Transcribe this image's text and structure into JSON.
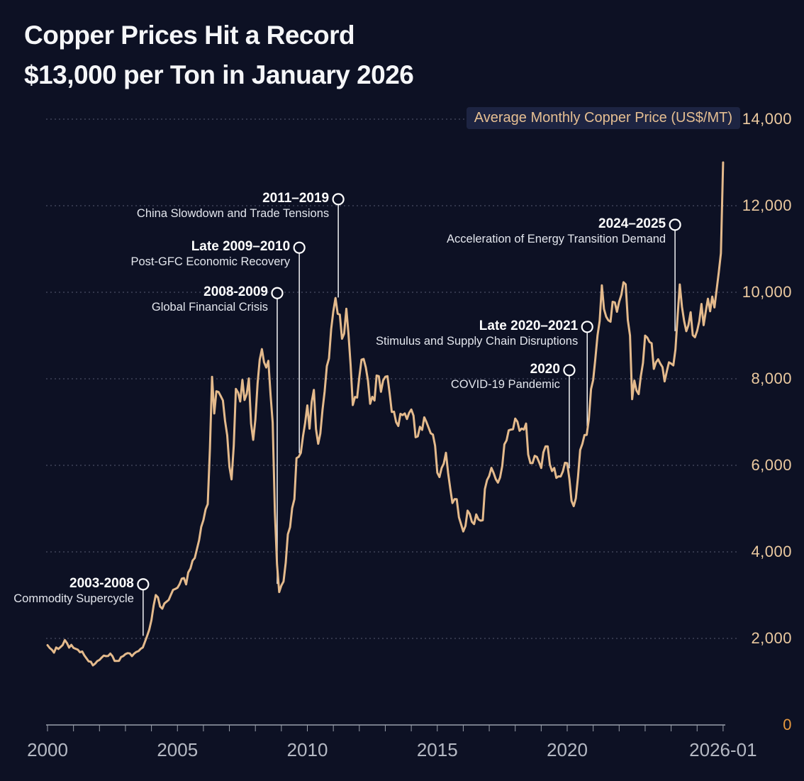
{
  "title": {
    "line1": "Copper Prices Hit a Record",
    "line2": "$13,000 per Ton in January 2026"
  },
  "legend": {
    "label": "Average Monthly Copper Price (US$/MT)"
  },
  "colors": {
    "background": "#0d1124",
    "line": "#e4ba8c",
    "grid": "#565c72",
    "axis_line": "#9aa0ab",
    "y_label": "#eccaa0",
    "zero_label": "#e6993f",
    "x_label": "#b5b9c3",
    "annotation_line": "#f2f3f5",
    "legend_bg": "#1d2442",
    "legend_text": "#e6bf92",
    "title_text": "#f5f6f8"
  },
  "chart_data": {
    "type": "line",
    "title": "Copper Prices Hit a Record $13,000 per Ton in January 2026",
    "series_name": "Average Monthly Copper Price (US$/MT)",
    "grid": "horizontal dashed",
    "legend_position": "top-right",
    "xlim": [
      2000,
      2026.08
    ],
    "ylim": [
      0,
      14000
    ],
    "x_start_year": 2000,
    "x_interval_months": 1,
    "y_ticks": [
      {
        "value": 0,
        "label": "0"
      },
      {
        "value": 2000,
        "label": "2,000"
      },
      {
        "value": 4000,
        "label": "4,000"
      },
      {
        "value": 6000,
        "label": "6,000"
      },
      {
        "value": 8000,
        "label": "8,000"
      },
      {
        "value": 10000,
        "label": "10,000"
      },
      {
        "value": 12000,
        "label": "12,000"
      },
      {
        "value": 14000,
        "label": "14,000"
      }
    ],
    "x_ticks": [
      {
        "value": 2000,
        "label": "2000"
      },
      {
        "value": 2005,
        "label": "2005"
      },
      {
        "value": 2010,
        "label": "2010"
      },
      {
        "value": 2015,
        "label": "2015"
      },
      {
        "value": 2020,
        "label": "2020"
      },
      {
        "value": 2026,
        "label": "2026-01"
      }
    ],
    "values": [
      1844,
      1779,
      1739,
      1670,
      1790,
      1755,
      1800,
      1847,
      1963,
      1891,
      1787,
      1851,
      1780,
      1760,
      1739,
      1680,
      1698,
      1609,
      1540,
      1470,
      1460,
      1377,
      1416,
      1477,
      1503,
      1558,
      1603,
      1590,
      1593,
      1650,
      1590,
      1480,
      1478,
      1482,
      1570,
      1591,
      1638,
      1661,
      1652,
      1590,
      1649,
      1687,
      1707,
      1757,
      1790,
      1920,
      2058,
      2201,
      2423,
      2759,
      3001,
      2948,
      2736,
      2687,
      2808,
      2850,
      2892,
      3012,
      3122,
      3143,
      3170,
      3254,
      3382,
      3395,
      3249,
      3524,
      3614,
      3798,
      3858,
      4060,
      4269,
      4577,
      4734,
      4982,
      5103,
      6388,
      8045,
      7198,
      7712,
      7694,
      7602,
      7500,
      7029,
      6691,
      5966,
      5675,
      6452,
      7766,
      7682,
      7476,
      7973,
      7510,
      7649,
      8008,
      6966,
      6588,
      7061,
      7888,
      8439,
      8685,
      8383,
      8260,
      8414,
      7632,
      6988,
      4926,
      3717,
      3072,
      3221,
      3315,
      3750,
      4407,
      4569,
      5014,
      5216,
      6165,
      6196,
      6288,
      6676,
      6982,
      7386,
      6848,
      7463,
      7745,
      6838,
      6499,
      6735,
      7284,
      7709,
      8292,
      8470,
      9147,
      9556,
      9868,
      9503,
      9483,
      8927,
      9045,
      9619,
      9041,
      8300,
      7394,
      7581,
      7565,
      8040,
      8441,
      8457,
      8260,
      7956,
      7423,
      7584,
      7498,
      8075,
      8060,
      7700,
      7960,
      8047,
      8060,
      7660,
      7235,
      7240,
      7000,
      6910,
      7190,
      7160,
      7200,
      7070,
      7210,
      7290,
      7150,
      6650,
      6670,
      6890,
      6820,
      7110,
      7000,
      6870,
      6740,
      6710,
      6450,
      5830,
      5730,
      5940,
      6040,
      6290,
      5830,
      5460,
      5130,
      5220,
      5216,
      4800,
      4639,
      4472,
      4599,
      4954,
      4873,
      4695,
      4642,
      4865,
      4751,
      4722,
      4731,
      5451,
      5660,
      5755,
      5941,
      5824,
      5684,
      5600,
      5720,
      5985,
      6485,
      6577,
      6808,
      6827,
      6834,
      7080,
      7007,
      6799,
      6851,
      6825,
      6966,
      6250,
      6051,
      6051,
      6220,
      6195,
      6075,
      5939,
      6300,
      6439,
      6438,
      6018,
      5868,
      5940,
      5710,
      5746,
      5742,
      5860,
      6059,
      6049,
      5686,
      5178,
      5058,
      5240,
      5742,
      6354,
      6497,
      6700,
      6703,
      7063,
      7760,
      7971,
      8460,
      9005,
      9336,
      10161,
      9613,
      9434,
      9352,
      9320,
      9778,
      9766,
      9550,
      9782,
      9941,
      10231,
      10183,
      9360,
      9000,
      7530,
      7959,
      7731,
      7646,
      8052,
      8367,
      8999,
      8950,
      8850,
      8822,
      8230,
      8380,
      8450,
      8350,
      8270,
      7940,
      8170,
      8380,
      8350,
      8310,
      8680,
      9460,
      10180,
      9660,
      9340,
      9100,
      9240,
      9540,
      9010,
      8960,
      9110,
      9330,
      9730,
      9240,
      9560,
      9850,
      9560,
      9900,
      9650,
      10050,
      10460,
      10900,
      13000
    ],
    "annotations": [
      {
        "year_label": "2003-2008",
        "text": "Commodity Supercycle",
        "x": 2003.68,
        "y": 3250,
        "line_end_value": 2060
      },
      {
        "year_label": "2008-2009",
        "text": "Global Financial Crisis",
        "x": 2008.84,
        "y": 9980,
        "line_end_value": 3260
      },
      {
        "year_label": "Late 2009–2010",
        "text": "Post-GFC Economic Recovery",
        "x": 2009.69,
        "y": 11030,
        "line_end_value": 6280
      },
      {
        "year_label": "2011–2019",
        "text": "China Slowdown and Trade Tensions",
        "x": 2011.19,
        "y": 12150,
        "line_end_value": 9880
      },
      {
        "year_label": "2020",
        "text": "COVID-19 Pandemic",
        "x": 2020.08,
        "y": 8200,
        "line_end_value": 5930
      },
      {
        "year_label": "Late 2020–2021",
        "text": "Stimulus and Supply Chain Disruptions",
        "x": 2020.77,
        "y": 9200,
        "line_end_value": 6900
      },
      {
        "year_label": "2024–2025",
        "text": "Acceleration of Energy Transition Demand",
        "x": 2024.15,
        "y": 11560,
        "line_end_value": 9100
      }
    ]
  }
}
